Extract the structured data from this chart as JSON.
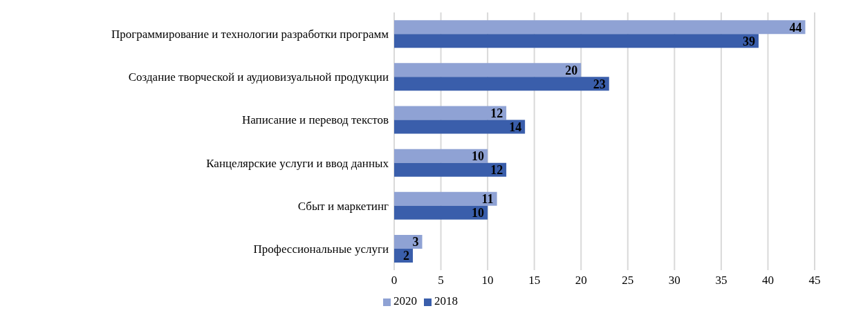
{
  "chart_data": {
    "type": "bar",
    "orientation": "horizontal",
    "categories": [
      "Программирование и технологии разработки программ",
      "Создание творческой и аудиовизуальной продукции",
      "Написание и перевод текстов",
      "Канцелярские услуги и ввод данных",
      "Сбыт и маркетинг",
      "Профессиональные услуги"
    ],
    "series": [
      {
        "name": "2020",
        "color": "#8fa2d4",
        "values": [
          44,
          20,
          12,
          10,
          11,
          3
        ]
      },
      {
        "name": "2018",
        "color": "#3a5eab",
        "values": [
          39,
          23,
          14,
          12,
          10,
          2
        ]
      }
    ],
    "xlim": [
      0,
      45
    ],
    "xticks": [
      0,
      5,
      10,
      15,
      20,
      25,
      30,
      35,
      40,
      45
    ],
    "grid": "x",
    "legend": "bottom",
    "data_labels": true
  }
}
